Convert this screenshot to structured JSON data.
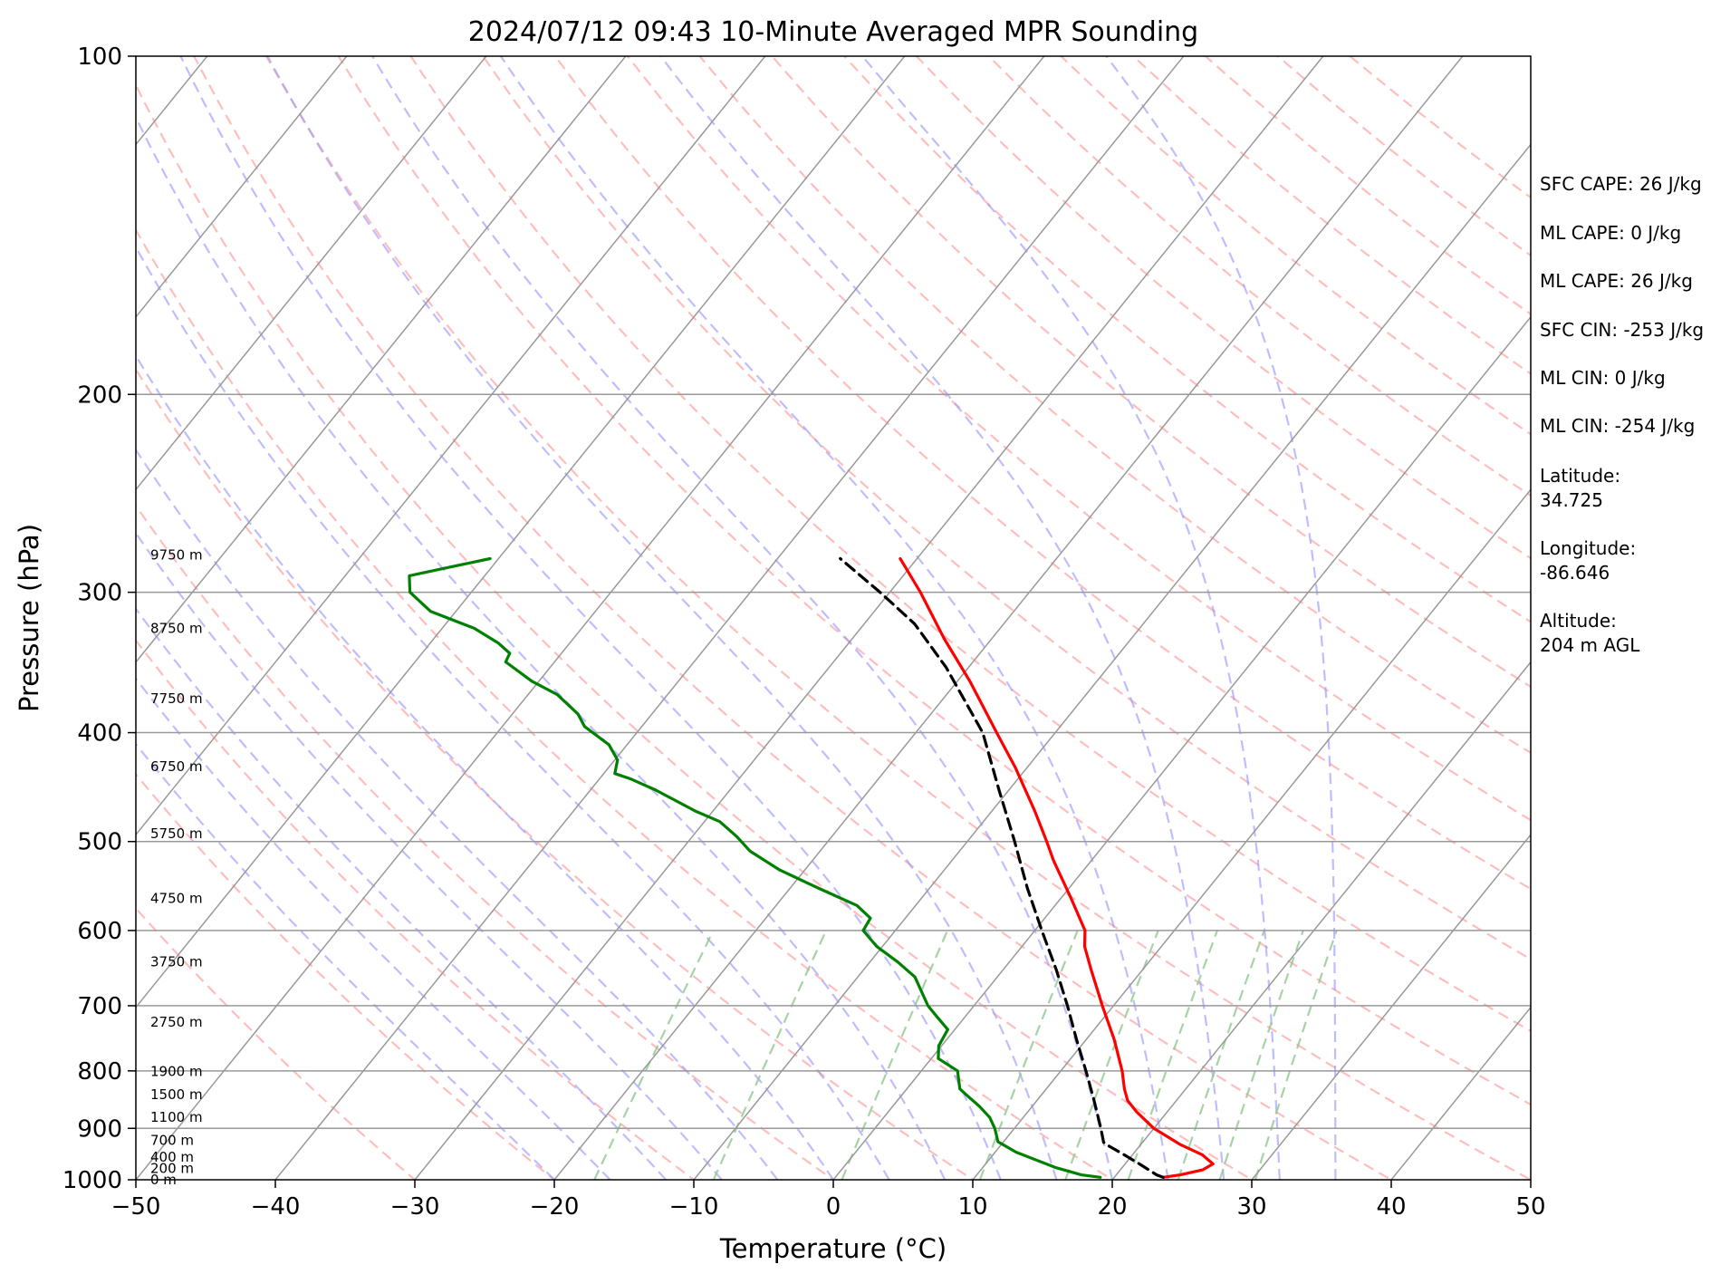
{
  "chart_data": {
    "type": "line",
    "title": "2024/07/12 09:43 10-Minute Averaged MPR Sounding",
    "xlabel": "Temperature (°C)",
    "ylabel": "Pressure (hPa)",
    "x_scale": "skew-T",
    "y_scale": "log",
    "xlim": [
      -50,
      50
    ],
    "ylim": [
      1000,
      100
    ],
    "x_ticks": [
      -50,
      -40,
      -30,
      -20,
      -10,
      0,
      10,
      20,
      30,
      40,
      50
    ],
    "y_ticks": [
      1000,
      900,
      800,
      700,
      600,
      500,
      400,
      300,
      200,
      100
    ],
    "grid": true,
    "colors": {
      "temperature": "#ff0000",
      "dewpoint": "#008000",
      "parcel": "#000000",
      "dry_adiabats": "#ff9999",
      "moist_adiabats": "#9999ff",
      "mixing_ratio": "#90c890",
      "isotherms": "#999999",
      "isobars": "#999999"
    },
    "height_labels": [
      {
        "label": "0 m",
        "p": 1000
      },
      {
        "label": "200 m",
        "p": 977
      },
      {
        "label": "400 m",
        "p": 955
      },
      {
        "label": "700 m",
        "p": 922
      },
      {
        "label": "1100 m",
        "p": 880
      },
      {
        "label": "1500 m",
        "p": 840
      },
      {
        "label": "1900 m",
        "p": 801
      },
      {
        "label": "2750 m",
        "p": 724
      },
      {
        "label": "3750 m",
        "p": 640
      },
      {
        "label": "4750 m",
        "p": 562
      },
      {
        "label": "5750 m",
        "p": 492
      },
      {
        "label": "6750 m",
        "p": 429
      },
      {
        "label": "7750 m",
        "p": 373
      },
      {
        "label": "8750 m",
        "p": 323
      },
      {
        "label": "9750 m",
        "p": 278
      }
    ],
    "series": [
      {
        "key": "temperature",
        "points": [
          {
            "p": 995,
            "t": 23.5
          },
          {
            "p": 990,
            "t": 24.6
          },
          {
            "p": 980,
            "t": 25.9
          },
          {
            "p": 968,
            "t": 26.3
          },
          {
            "p": 950,
            "t": 25.0
          },
          {
            "p": 930,
            "t": 22.8
          },
          {
            "p": 900,
            "t": 20.0
          },
          {
            "p": 870,
            "t": 17.8
          },
          {
            "p": 850,
            "t": 16.5
          },
          {
            "p": 830,
            "t": 15.6
          },
          {
            "p": 800,
            "t": 14.4
          },
          {
            "p": 750,
            "t": 12.0
          },
          {
            "p": 700,
            "t": 9.2
          },
          {
            "p": 650,
            "t": 6.3
          },
          {
            "p": 620,
            "t": 4.5
          },
          {
            "p": 600,
            "t": 3.6
          },
          {
            "p": 560,
            "t": 0.6
          },
          {
            "p": 520,
            "t": -2.7
          },
          {
            "p": 500,
            "t": -4.3
          },
          {
            "p": 470,
            "t": -6.9
          },
          {
            "p": 430,
            "t": -10.8
          },
          {
            "p": 400,
            "t": -14.2
          },
          {
            "p": 360,
            "t": -19.1
          },
          {
            "p": 330,
            "t": -23.4
          },
          {
            "p": 300,
            "t": -27.8
          },
          {
            "p": 280,
            "t": -31.2
          }
        ]
      },
      {
        "key": "dewpoint",
        "points": [
          {
            "p": 995,
            "t": 19.0
          },
          {
            "p": 990,
            "t": 17.5
          },
          {
            "p": 975,
            "t": 15.2
          },
          {
            "p": 945,
            "t": 11.5
          },
          {
            "p": 925,
            "t": 9.6
          },
          {
            "p": 900,
            "t": 8.6
          },
          {
            "p": 880,
            "t": 7.6
          },
          {
            "p": 860,
            "t": 6.2
          },
          {
            "p": 845,
            "t": 5.0
          },
          {
            "p": 830,
            "t": 3.8
          },
          {
            "p": 800,
            "t": 2.6
          },
          {
            "p": 780,
            "t": 0.5
          },
          {
            "p": 760,
            "t": -0.2
          },
          {
            "p": 735,
            "t": -0.5
          },
          {
            "p": 715,
            "t": -2.1
          },
          {
            "p": 700,
            "t": -3.3
          },
          {
            "p": 660,
            "t": -5.9
          },
          {
            "p": 640,
            "t": -8.0
          },
          {
            "p": 620,
            "t": -10.4
          },
          {
            "p": 600,
            "t": -12.3
          },
          {
            "p": 585,
            "t": -12.5
          },
          {
            "p": 570,
            "t": -14.2
          },
          {
            "p": 550,
            "t": -18.0
          },
          {
            "p": 530,
            "t": -21.8
          },
          {
            "p": 510,
            "t": -25.0
          },
          {
            "p": 495,
            "t": -26.8
          },
          {
            "p": 480,
            "t": -28.9
          },
          {
            "p": 470,
            "t": -31.2
          },
          {
            "p": 450,
            "t": -35.3
          },
          {
            "p": 440,
            "t": -37.7
          },
          {
            "p": 435,
            "t": -39.2
          },
          {
            "p": 423,
            "t": -39.8
          },
          {
            "p": 410,
            "t": -41.3
          },
          {
            "p": 395,
            "t": -44.1
          },
          {
            "p": 385,
            "t": -45.3
          },
          {
            "p": 370,
            "t": -47.9
          },
          {
            "p": 360,
            "t": -50.5
          },
          {
            "p": 346,
            "t": -53.5
          },
          {
            "p": 340,
            "t": -53.7
          },
          {
            "p": 333,
            "t": -55.1
          },
          {
            "p": 323,
            "t": -57.7
          },
          {
            "p": 312,
            "t": -61.8
          },
          {
            "p": 300,
            "t": -64.4
          },
          {
            "p": 290,
            "t": -65.4
          },
          {
            "p": 280,
            "t": -60.6
          }
        ]
      },
      {
        "key": "parcel",
        "points": [
          {
            "p": 995,
            "t": 23.5
          },
          {
            "p": 990,
            "t": 22.9
          },
          {
            "p": 970,
            "t": 21.2
          },
          {
            "p": 950,
            "t": 19.4
          },
          {
            "p": 930,
            "t": 17.5
          },
          {
            "p": 926,
            "t": 17.2
          },
          {
            "p": 900,
            "t": 16.2
          },
          {
            "p": 850,
            "t": 14.1
          },
          {
            "p": 800,
            "t": 11.8
          },
          {
            "p": 750,
            "t": 9.3
          },
          {
            "p": 700,
            "t": 6.7
          },
          {
            "p": 650,
            "t": 3.8
          },
          {
            "p": 600,
            "t": 0.5
          },
          {
            "p": 550,
            "t": -3.0
          },
          {
            "p": 500,
            "t": -6.6
          },
          {
            "p": 450,
            "t": -10.7
          },
          {
            "p": 400,
            "t": -15.2
          },
          {
            "p": 350,
            "t": -21.6
          },
          {
            "p": 320,
            "t": -26.4
          },
          {
            "p": 300,
            "t": -30.7
          },
          {
            "p": 280,
            "t": -35.5
          }
        ]
      }
    ]
  },
  "info": {
    "lines": [
      "SFC CAPE: 26 J/kg",
      "ML CAPE: 0 J/kg",
      "ML CAPE: 26 J/kg",
      "SFC CIN: -253 J/kg",
      "ML CIN: 0 J/kg",
      "ML CIN: -254 J/kg",
      "Latitude:",
      "34.725",
      "Longitude:",
      "-86.646",
      "Altitude:",
      "204 m AGL"
    ]
  }
}
